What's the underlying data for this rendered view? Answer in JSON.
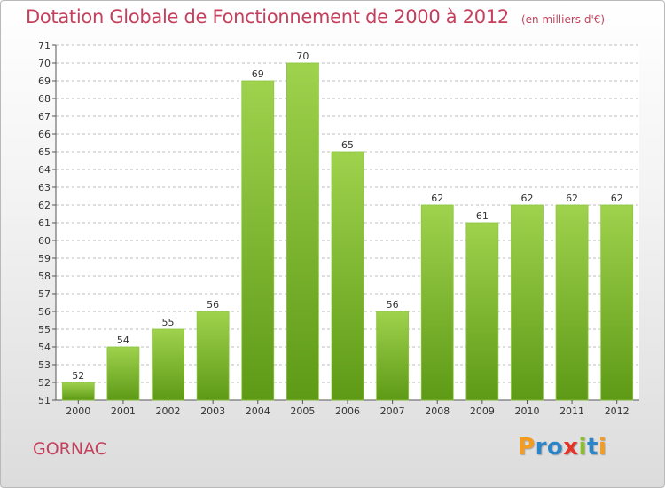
{
  "header": {
    "title": "Dotation Globale de Fonctionnement de 2000 à 2012",
    "subtitle": "(en milliers d'€)"
  },
  "footer": {
    "place": "GORNAC",
    "logo": "Proxiti"
  },
  "colors": {
    "title": "#c4415d",
    "bar_top": "#9fd24d",
    "bar_bottom": "#5e9a16",
    "grid": "#bdbdbd"
  },
  "chart_data": {
    "type": "bar",
    "title": "Dotation Globale de Fonctionnement de 2000 à 2012",
    "subtitle": "(en milliers d'€)",
    "xlabel": "",
    "ylabel": "",
    "categories": [
      "2000",
      "2001",
      "2002",
      "2003",
      "2004",
      "2005",
      "2006",
      "2007",
      "2008",
      "2009",
      "2010",
      "2011",
      "2012"
    ],
    "values": [
      52,
      54,
      55,
      56,
      69,
      70,
      65,
      56,
      62,
      61,
      62,
      62,
      62
    ],
    "ylim": [
      51,
      71
    ],
    "yticks": [
      51,
      52,
      53,
      54,
      55,
      56,
      57,
      58,
      59,
      60,
      61,
      62,
      63,
      64,
      65,
      66,
      67,
      68,
      69,
      70,
      71
    ],
    "grid": true,
    "legend": "none"
  }
}
